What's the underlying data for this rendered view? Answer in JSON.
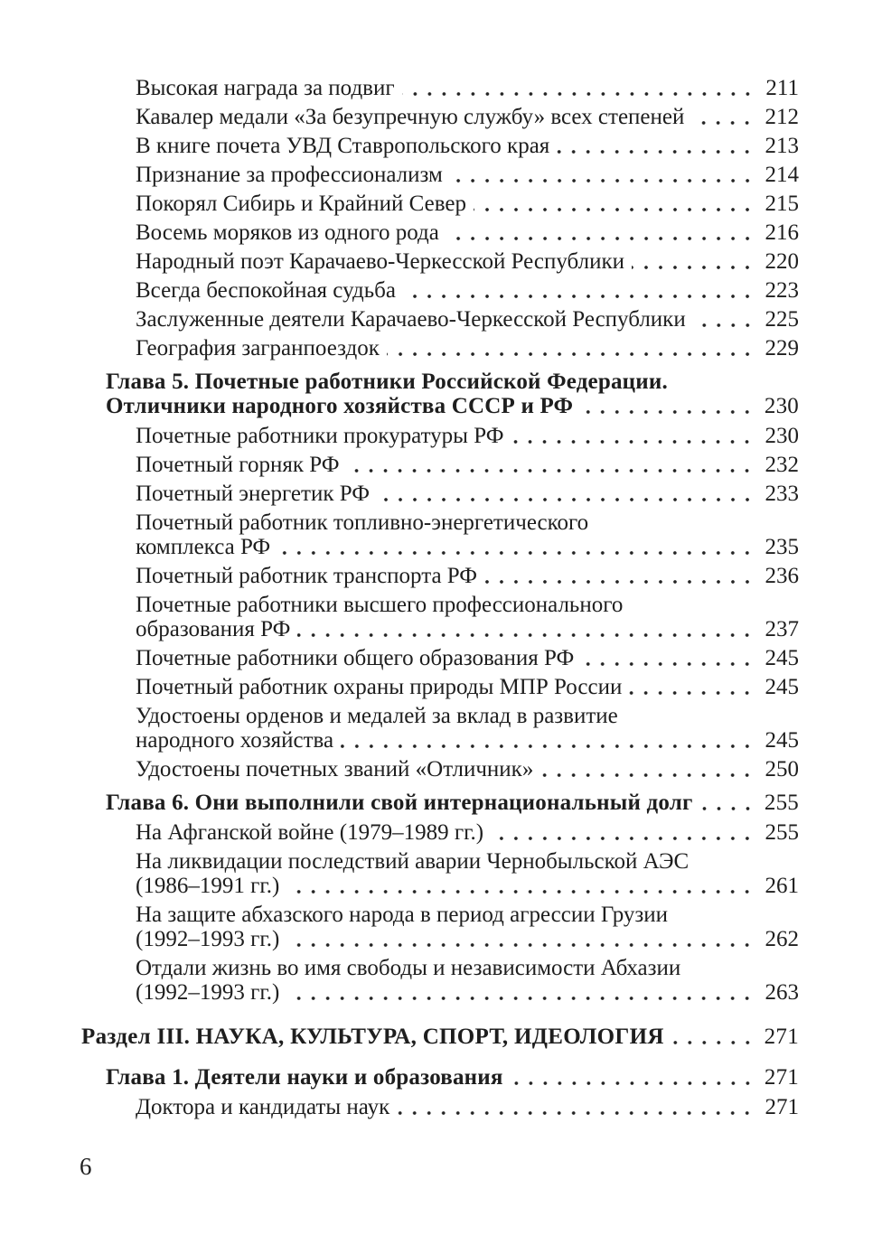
{
  "page": {
    "background_color": "#ffffff",
    "text_color": "#1e1e1e",
    "folio": "6"
  },
  "toc": {
    "entries": [
      {
        "level": "entry",
        "lines": [
          "Высокая награда за подвиг"
        ],
        "page": "211"
      },
      {
        "level": "entry",
        "lines": [
          "Кавалер медали «За безупречную службу» всех степеней"
        ],
        "page": "212"
      },
      {
        "level": "entry",
        "lines": [
          "В книге почета УВД Ставропольского края"
        ],
        "page": "213"
      },
      {
        "level": "entry",
        "lines": [
          "Признание за профессионализм"
        ],
        "page": "214"
      },
      {
        "level": "entry",
        "lines": [
          "Покорял Сибирь и Крайний Север"
        ],
        "page": "215"
      },
      {
        "level": "entry",
        "lines": [
          "Восемь моряков из одного рода"
        ],
        "page": "216"
      },
      {
        "level": "entry",
        "lines": [
          "Народный поэт Карачаево-Черкесской Республики"
        ],
        "page": "220"
      },
      {
        "level": "entry",
        "lines": [
          "Всегда беспокойная судьба"
        ],
        "page": "223"
      },
      {
        "level": "entry",
        "lines": [
          "Заслуженные деятели Карачаево-Черкесской Республики"
        ],
        "page": "225"
      },
      {
        "level": "entry",
        "lines": [
          "География загранпоездок"
        ],
        "page": "229"
      },
      {
        "level": "chapter",
        "lines": [
          "Глава 5. Почетные работники Российской Федерации.",
          "Отличники народного хозяйства СССР и РФ"
        ],
        "page": "230"
      },
      {
        "level": "entry",
        "lines": [
          "Почетные работники прокуратуры РФ"
        ],
        "page": "230"
      },
      {
        "level": "entry",
        "lines": [
          "Почетный горняк РФ"
        ],
        "page": "232"
      },
      {
        "level": "entry",
        "lines": [
          "Почетный энергетик РФ"
        ],
        "page": "233"
      },
      {
        "level": "entry",
        "lines": [
          "Почетный работник топливно-энергетического",
          "комплекса РФ"
        ],
        "page": "235"
      },
      {
        "level": "entry",
        "lines": [
          "Почетный работник транспорта РФ"
        ],
        "page": "236"
      },
      {
        "level": "entry",
        "lines": [
          "Почетные работники высшего профессионального",
          "образования РФ"
        ],
        "page": "237"
      },
      {
        "level": "entry",
        "lines": [
          "Почетные работники общего образования РФ"
        ],
        "page": "245"
      },
      {
        "level": "entry",
        "lines": [
          "Почетный работник охраны природы МПР России"
        ],
        "page": "245"
      },
      {
        "level": "entry",
        "lines": [
          "Удостоены орденов и медалей за вклад в развитие",
          "народного хозяйства"
        ],
        "page": "245"
      },
      {
        "level": "entry",
        "lines": [
          "Удостоены почетных званий «Отличник»"
        ],
        "page": "250"
      },
      {
        "level": "chapter",
        "lines": [
          "Глава 6. Они выполнили свой интернациональный долг"
        ],
        "page": "255"
      },
      {
        "level": "entry",
        "lines": [
          "На Афганской войне (1979–1989 гг.)"
        ],
        "page": "255"
      },
      {
        "level": "entry",
        "lines": [
          "На ликвидации последствий аварии Чернобыльской АЭС",
          "(1986–1991 гг.)"
        ],
        "page": "261"
      },
      {
        "level": "entry",
        "lines": [
          "На защите абхазского народа в период агрессии Грузии",
          "(1992–1993 гг.)"
        ],
        "page": "262"
      },
      {
        "level": "entry",
        "lines": [
          "Отдали жизнь во имя свободы и независимости Абхазии",
          "(1992–1993 гг.)"
        ],
        "page": "263"
      },
      {
        "level": "section",
        "lines": [
          "Раздел III. НАУКА, КУЛЬТУРА, СПОРТ, ИДЕОЛОГИЯ"
        ],
        "page": "271"
      },
      {
        "level": "chapter",
        "lines": [
          "Глава 1. Деятели науки и образования"
        ],
        "page": "271"
      },
      {
        "level": "entry",
        "lines": [
          "Доктора и кандидаты наук"
        ],
        "page": "271"
      }
    ]
  }
}
